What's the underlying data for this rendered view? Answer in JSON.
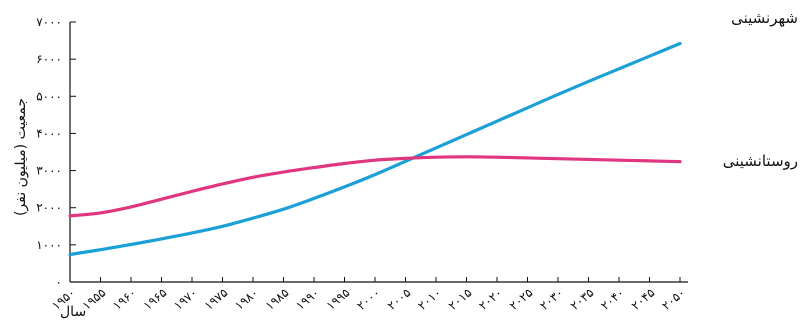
{
  "chart_data": {
    "type": "line",
    "ylabel": "جمعیت (میلیون نفر)",
    "xlabel": "سال",
    "ylim": [
      0,
      7000
    ],
    "xlim": [
      1950,
      2050
    ],
    "y_ticks": [
      0,
      1000,
      2000,
      3000,
      4000,
      5000,
      6000,
      7000
    ],
    "y_tick_labels": [
      "۰",
      "۱۰۰۰",
      "۲۰۰۰",
      "۳۰۰۰",
      "۴۰۰۰",
      "۵۰۰۰",
      "۶۰۰۰",
      "۷۰۰۰"
    ],
    "x": [
      1950,
      1955,
      1960,
      1965,
      1970,
      1975,
      1980,
      1985,
      1990,
      1995,
      2000,
      2005,
      2010,
      2015,
      2020,
      2025,
      2030,
      2035,
      2040,
      2045,
      2050
    ],
    "x_tick_labels": [
      "۱۹۵۰",
      "۱۹۵۵",
      "۱۹۶۰",
      "۱۹۶۵",
      "۱۹۷۰",
      "۱۹۷۵",
      "۱۹۸۰",
      "۱۹۸۵",
      "۱۹۹۰",
      "۱۹۹۵",
      "۲۰۰۰",
      "۲۰۰۵",
      "۲۰۱۰",
      "۲۰۱۵",
      "۲۰۲۰",
      "۲۰۲۵",
      "۲۰۳۰",
      "۲۰۳۵",
      "۲۰۴۰",
      "۲۰۴۵",
      "۲۰۵۰"
    ],
    "series": [
      {
        "name": "شهرنشینی",
        "color": "#1a9fd6",
        "values": [
          740,
          870,
          1010,
          1160,
          1320,
          1500,
          1720,
          1960,
          2250,
          2560,
          2890,
          3250,
          3610,
          3970,
          4330,
          4690,
          5050,
          5400,
          5740,
          6080,
          6420
        ]
      },
      {
        "name": "روستانشینی",
        "color": "#e0357f",
        "values": [
          1780,
          1860,
          2020,
          2230,
          2440,
          2640,
          2820,
          2960,
          3080,
          3190,
          3280,
          3330,
          3360,
          3370,
          3360,
          3340,
          3320,
          3300,
          3280,
          3260,
          3240
        ]
      }
    ],
    "grid": false,
    "legend": "direct labels at right"
  }
}
